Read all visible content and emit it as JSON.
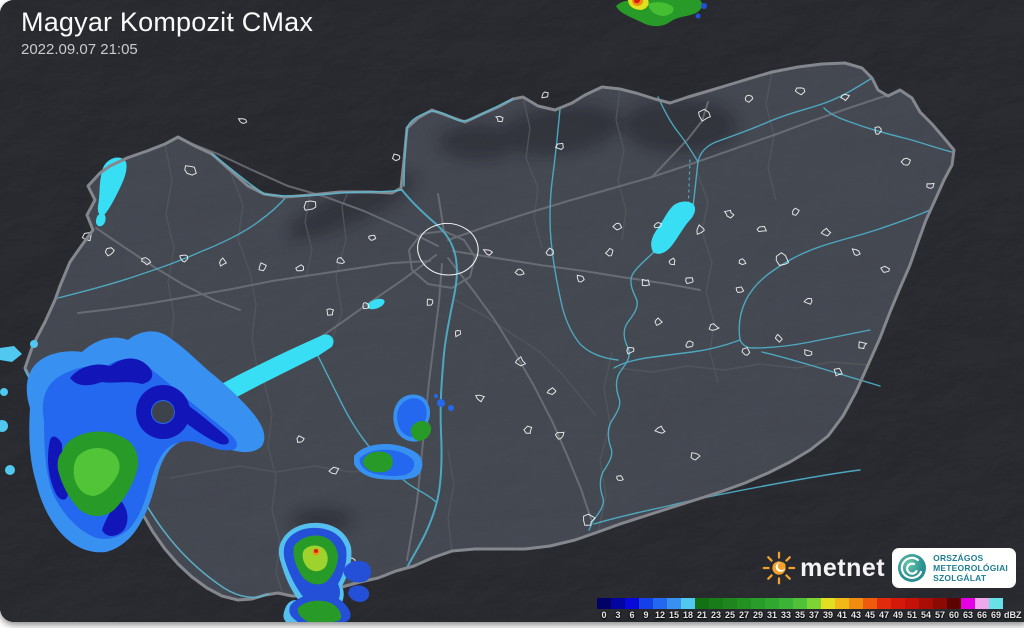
{
  "header": {
    "title": "Magyar Kompozit CMax",
    "timestamp": "2022.09.07 21:05"
  },
  "colorbar": {
    "unit": "dBZ",
    "stops": [
      {
        "label": "0",
        "color": "#020266"
      },
      {
        "label": "3",
        "color": "#0404a0"
      },
      {
        "label": "6",
        "color": "#0808d8"
      },
      {
        "label": "9",
        "color": "#1440e8"
      },
      {
        "label": "12",
        "color": "#2468f0"
      },
      {
        "label": "15",
        "color": "#3890f0"
      },
      {
        "label": "18",
        "color": "#50c8f0"
      },
      {
        "label": "21",
        "color": "#137113"
      },
      {
        "label": "23",
        "color": "#187c18"
      },
      {
        "label": "25",
        "color": "#1d871d"
      },
      {
        "label": "27",
        "color": "#239223"
      },
      {
        "label": "29",
        "color": "#299d29"
      },
      {
        "label": "31",
        "color": "#30a830"
      },
      {
        "label": "33",
        "color": "#3ab336"
      },
      {
        "label": "35",
        "color": "#4fc238"
      },
      {
        "label": "37",
        "color": "#7dd434"
      },
      {
        "label": "39",
        "color": "#e0e020"
      },
      {
        "label": "41",
        "color": "#f0b818"
      },
      {
        "label": "43",
        "color": "#f08c10"
      },
      {
        "label": "45",
        "color": "#ec5c0c"
      },
      {
        "label": "47",
        "color": "#e02c0c"
      },
      {
        "label": "49",
        "color": "#d4180a"
      },
      {
        "label": "51",
        "color": "#c41208"
      },
      {
        "label": "54",
        "color": "#a80e06"
      },
      {
        "label": "57",
        "color": "#8c0a04"
      },
      {
        "label": "60",
        "color": "#5c0402"
      },
      {
        "label": "63",
        "color": "#e400e4"
      },
      {
        "label": "66",
        "color": "#f0a8ec"
      },
      {
        "label": "69",
        "color": "#68e0e8"
      }
    ]
  },
  "branding": {
    "metnet": {
      "name": "metnet"
    },
    "omsz": {
      "line1": "ORSZÁGOS",
      "line2": "METEOROLÓGIAI",
      "line3": "SZOLGÁLAT"
    }
  },
  "map": {
    "colors": {
      "background": "#121318",
      "country_fill": "#3e424b",
      "country_border": "#84878d",
      "lake": "#38dff4",
      "river": "#4fadc6",
      "city_outline": "#ffffff"
    }
  }
}
